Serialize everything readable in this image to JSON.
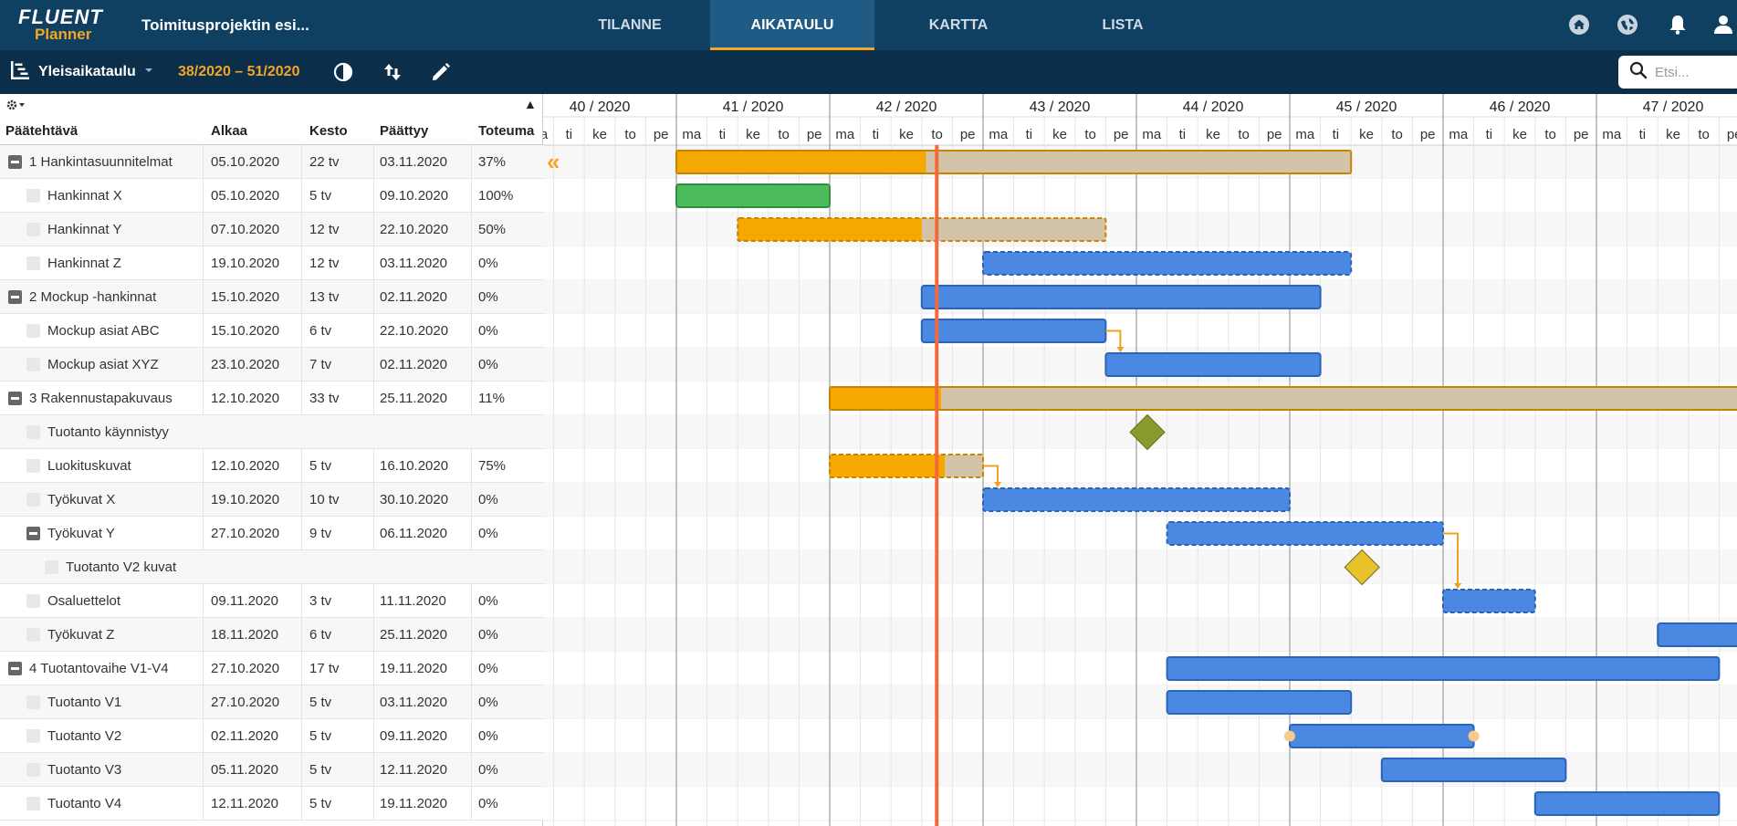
{
  "app": {
    "logo_top": "FLUENT",
    "logo_bottom": "Planner",
    "project_title": "Toimitusprojektin esi..."
  },
  "nav": {
    "tabs": [
      {
        "label": "TILANNE"
      },
      {
        "label": "AIKATAULU",
        "active": true
      },
      {
        "label": "KARTTA"
      },
      {
        "label": "LISTA"
      }
    ],
    "icons": [
      "home-icon",
      "globe-icon",
      "bell-icon",
      "user-icon"
    ]
  },
  "toolbar": {
    "view_label": "Yleisaikataulu",
    "range": "38/2020 – 51/2020",
    "icons": [
      "contrast-icon",
      "sort-icon",
      "edit-icon"
    ],
    "search_placeholder": "Etsi..."
  },
  "grid": {
    "headers": [
      "Päätehtävä",
      "Alkaa",
      "Kesto",
      "Päättyy",
      "Toteuma"
    ],
    "sort_arrow": "▲",
    "rows": [
      {
        "name": "1 Hankintasuunnitelmat",
        "start": "05.10.2020",
        "dur": "22 tv",
        "end": "03.11.2020",
        "prog": "37%",
        "level": 0,
        "toggle": "collapse"
      },
      {
        "name": "Hankinnat X",
        "start": "05.10.2020",
        "dur": "5 tv",
        "end": "09.10.2020",
        "prog": "100%",
        "level": 1,
        "toggle": "leaf"
      },
      {
        "name": "Hankinnat Y",
        "start": "07.10.2020",
        "dur": "12 tv",
        "end": "22.10.2020",
        "prog": "50%",
        "level": 1,
        "toggle": "leaf"
      },
      {
        "name": "Hankinnat Z",
        "start": "19.10.2020",
        "dur": "12 tv",
        "end": "03.11.2020",
        "prog": "0%",
        "level": 1,
        "toggle": "leaf"
      },
      {
        "name": "2 Mockup -hankinnat",
        "start": "15.10.2020",
        "dur": "13 tv",
        "end": "02.11.2020",
        "prog": "0%",
        "level": 0,
        "toggle": "collapse"
      },
      {
        "name": "Mockup asiat ABC",
        "start": "15.10.2020",
        "dur": "6 tv",
        "end": "22.10.2020",
        "prog": "0%",
        "level": 1,
        "toggle": "leaf"
      },
      {
        "name": "Mockup asiat XYZ",
        "start": "23.10.2020",
        "dur": "7 tv",
        "end": "02.11.2020",
        "prog": "0%",
        "level": 1,
        "toggle": "leaf"
      },
      {
        "name": "3 Rakennustapakuvaus",
        "start": "12.10.2020",
        "dur": "33 tv",
        "end": "25.11.2020",
        "prog": "11%",
        "level": 0,
        "toggle": "collapse"
      },
      {
        "name": "Tuotanto käynnistyy",
        "start": "",
        "dur": "",
        "end": "",
        "prog": "",
        "level": 1,
        "toggle": "leaf"
      },
      {
        "name": "Luokituskuvat",
        "start": "12.10.2020",
        "dur": "5 tv",
        "end": "16.10.2020",
        "prog": "75%",
        "level": 1,
        "toggle": "leaf"
      },
      {
        "name": "Työkuvat X",
        "start": "19.10.2020",
        "dur": "10 tv",
        "end": "30.10.2020",
        "prog": "0%",
        "level": 1,
        "toggle": "leaf"
      },
      {
        "name": "Työkuvat Y",
        "start": "27.10.2020",
        "dur": "9 tv",
        "end": "06.11.2020",
        "prog": "0%",
        "level": 1,
        "toggle": "collapse"
      },
      {
        "name": "Tuotanto V2 kuvat",
        "start": "",
        "dur": "",
        "end": "",
        "prog": "",
        "level": 2,
        "toggle": "leaf"
      },
      {
        "name": "Osaluettelot",
        "start": "09.11.2020",
        "dur": "3 tv",
        "end": "11.11.2020",
        "prog": "0%",
        "level": 1,
        "toggle": "leaf"
      },
      {
        "name": "Työkuvat Z",
        "start": "18.11.2020",
        "dur": "6 tv",
        "end": "25.11.2020",
        "prog": "0%",
        "level": 1,
        "toggle": "leaf"
      },
      {
        "name": "4 Tuotantovaihe V1-V4",
        "start": "27.10.2020",
        "dur": "17 tv",
        "end": "19.11.2020",
        "prog": "0%",
        "level": 0,
        "toggle": "collapse"
      },
      {
        "name": "Tuotanto V1",
        "start": "27.10.2020",
        "dur": "5 tv",
        "end": "03.11.2020",
        "prog": "0%",
        "level": 1,
        "toggle": "leaf"
      },
      {
        "name": "Tuotanto V2",
        "start": "02.11.2020",
        "dur": "5 tv",
        "end": "09.11.2020",
        "prog": "0%",
        "level": 1,
        "toggle": "leaf"
      },
      {
        "name": "Tuotanto V3",
        "start": "05.11.2020",
        "dur": "5 tv",
        "end": "12.11.2020",
        "prog": "0%",
        "level": 1,
        "toggle": "leaf"
      },
      {
        "name": "Tuotanto V4",
        "start": "12.11.2020",
        "dur": "5 tv",
        "end": "19.11.2020",
        "prog": "0%",
        "level": 1,
        "toggle": "leaf"
      }
    ]
  },
  "timeline": {
    "weeks": [
      "40 / 2020",
      "41 / 2020",
      "42 / 2020",
      "43 / 2020",
      "44 / 2020",
      "45 / 2020",
      "46 / 2020",
      "47 / 2020"
    ],
    "day_labels": [
      "ma",
      "ti",
      "ke",
      "to",
      "pe"
    ],
    "first_visible_date": "2020-09-28",
    "today": "2020-10-15",
    "scroll_back_glyph": "«",
    "colors": {
      "summary": "#f5a800",
      "summary_border": "#c88400",
      "remaining": "#d3c3a9",
      "task": "#4a88e2",
      "task_border": "#2b63b8",
      "done": "#4cbb5b",
      "milestone_green": "#8a9a2f",
      "milestone_yellow": "#e8c22a",
      "today": "#f26a3c",
      "link": "#f0a020"
    },
    "bars": [
      {
        "row": 0,
        "start": "2020-10-05",
        "end": "2020-11-03",
        "kind": "summary",
        "progress": 0.37
      },
      {
        "row": 1,
        "start": "2020-10-05",
        "end": "2020-10-09",
        "kind": "done",
        "progress": 1
      },
      {
        "row": 2,
        "start": "2020-10-07",
        "end": "2020-10-22",
        "kind": "summary",
        "progress": 0.5,
        "dashed": true
      },
      {
        "row": 3,
        "start": "2020-10-19",
        "end": "2020-11-03",
        "kind": "task",
        "dashed": true
      },
      {
        "row": 4,
        "start": "2020-10-15",
        "end": "2020-11-02",
        "kind": "task"
      },
      {
        "row": 5,
        "start": "2020-10-15",
        "end": "2020-10-22",
        "kind": "task"
      },
      {
        "row": 6,
        "start": "2020-10-23",
        "end": "2020-11-02",
        "kind": "task"
      },
      {
        "row": 7,
        "start": "2020-10-12",
        "end": "2020-11-25",
        "kind": "summary",
        "progress": 0.11
      },
      {
        "row": 9,
        "start": "2020-10-12",
        "end": "2020-10-16",
        "kind": "summary",
        "progress": 0.75,
        "dashed": true
      },
      {
        "row": 10,
        "start": "2020-10-19",
        "end": "2020-10-30",
        "kind": "task",
        "dashed": true
      },
      {
        "row": 11,
        "start": "2020-10-27",
        "end": "2020-11-06",
        "kind": "task",
        "dashed": true
      },
      {
        "row": 13,
        "start": "2020-11-09",
        "end": "2020-11-11",
        "kind": "task",
        "dashed": true
      },
      {
        "row": 14,
        "start": "2020-11-18",
        "end": "2020-11-25",
        "kind": "task"
      },
      {
        "row": 15,
        "start": "2020-10-27",
        "end": "2020-11-19",
        "kind": "task"
      },
      {
        "row": 16,
        "start": "2020-10-27",
        "end": "2020-11-03",
        "kind": "task"
      },
      {
        "row": 17,
        "start": "2020-11-02",
        "end": "2020-11-09",
        "kind": "task",
        "handles": true
      },
      {
        "row": 18,
        "start": "2020-11-05",
        "end": "2020-11-12",
        "kind": "task"
      },
      {
        "row": 19,
        "start": "2020-11-12",
        "end": "2020-11-19",
        "kind": "task"
      }
    ],
    "milestones": [
      {
        "row": 8,
        "date": "2020-10-26",
        "color": "milestone_green"
      },
      {
        "row": 12,
        "date": "2020-11-04",
        "color": "milestone_yellow"
      }
    ],
    "links": [
      {
        "from_row": 5,
        "to_row": 6
      },
      {
        "from_row": 9,
        "to_row": 10
      },
      {
        "from_row": 11,
        "to_row": 13
      }
    ]
  }
}
